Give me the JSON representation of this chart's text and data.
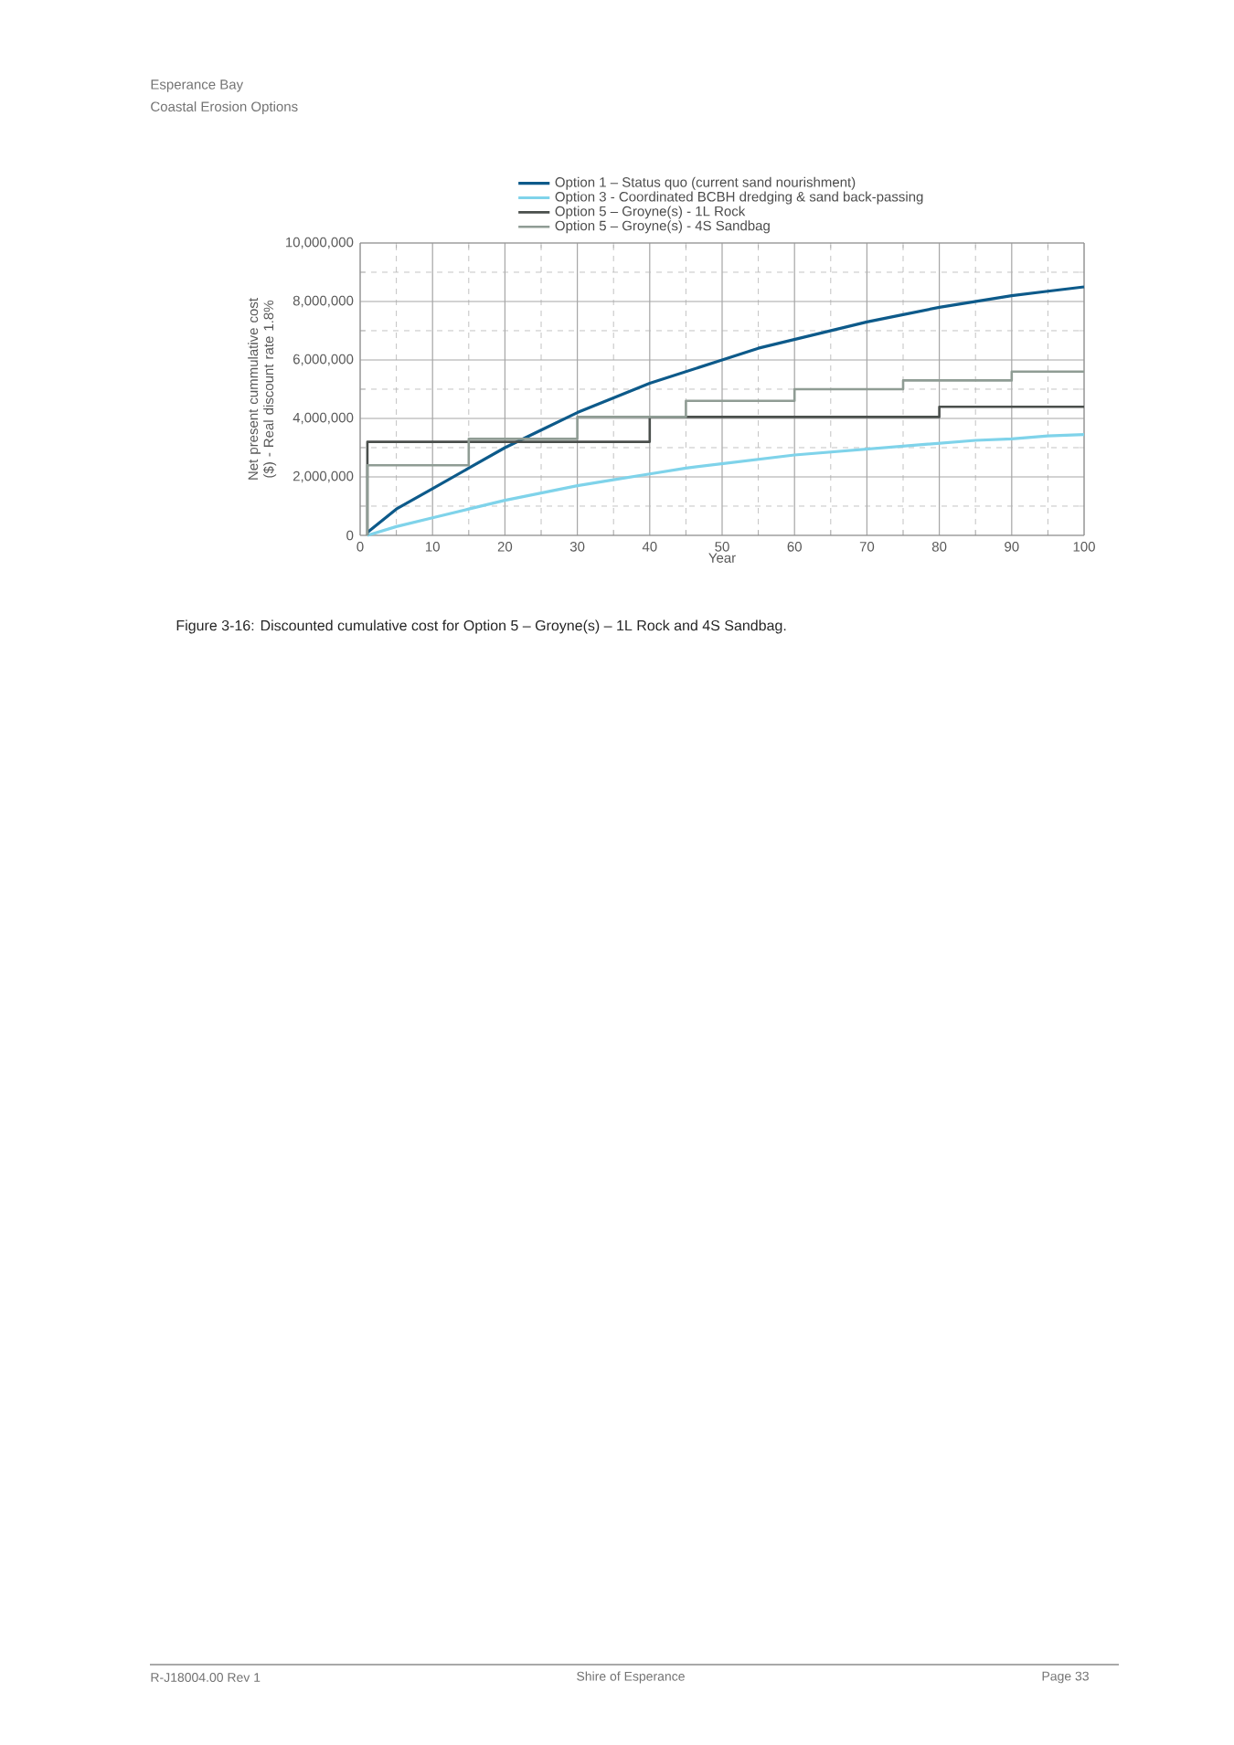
{
  "chart_data": {
    "type": "line",
    "xlabel": "Year",
    "ylabel": "Net present cummulative cost ($) - Real discount rate 1.8%",
    "xlim": [
      0,
      100
    ],
    "xticks": [
      0,
      10,
      20,
      30,
      40,
      50,
      60,
      70,
      80,
      90,
      100
    ],
    "ylim": [
      0,
      10000000
    ],
    "yticks": [
      {
        "value": 0,
        "label": "0"
      },
      {
        "value": 2000000,
        "label": "2,000,000"
      },
      {
        "value": 4000000,
        "label": "4,000,000"
      },
      {
        "value": 6000000,
        "label": "6,000,000"
      },
      {
        "value": 8000000,
        "label": "8,000,000"
      },
      {
        "value": 10000000,
        "label": "10,000,000"
      }
    ],
    "grid": true,
    "legend": "top",
    "marker": "none",
    "line_style": "solid",
    "series": [
      {
        "name": "Option 1 – Status quo (current sand nourishment)",
        "color": "#0d5a8a",
        "x": [
          1,
          5,
          10,
          15,
          20,
          25,
          30,
          35,
          40,
          45,
          50,
          55,
          60,
          65,
          70,
          75,
          80,
          85,
          90,
          95,
          100
        ],
        "values": [
          100000,
          900000,
          1600000,
          2300000,
          3000000,
          3600000,
          4200000,
          4700000,
          5200000,
          5600000,
          6000000,
          6400000,
          6700000,
          7000000,
          7300000,
          7550000,
          7800000,
          8000000,
          8200000,
          8350000,
          8500000
        ]
      },
      {
        "name": "Option 3 - Coordinated BCBH dredging & sand back-passing",
        "color": "#7fd3ea",
        "x": [
          1,
          5,
          10,
          15,
          20,
          25,
          30,
          35,
          40,
          45,
          50,
          55,
          60,
          65,
          70,
          75,
          80,
          85,
          90,
          95,
          100
        ],
        "values": [
          0,
          300000,
          600000,
          900000,
          1200000,
          1450000,
          1700000,
          1900000,
          2100000,
          2300000,
          2450000,
          2600000,
          2750000,
          2850000,
          2950000,
          3050000,
          3150000,
          3250000,
          3300000,
          3400000,
          3450000
        ]
      },
      {
        "name": "Option 5 – Groyne(s) - 1L Rock",
        "type": "step",
        "color": "#4a4f4c",
        "x": [
          1,
          1,
          40,
          80,
          100
        ],
        "values": [
          0,
          3200000,
          4050000,
          4400000,
          4400000
        ]
      },
      {
        "name": "Option 5 – Groyne(s) - 4S Sandbag",
        "type": "step",
        "color": "#8f9c94",
        "x": [
          1,
          1,
          15,
          30,
          45,
          60,
          75,
          90,
          100
        ],
        "values": [
          0,
          2400000,
          3300000,
          4050000,
          4600000,
          5000000,
          5300000,
          5600000,
          5600000
        ]
      }
    ],
    "annotations": [
      "Esperance Bay",
      "Coastal Erosion Options",
      "Figure 3-16: Discounted cumulative cost for Option 5 – Groyne(s) – 1L Rock and 4S Sandbag.",
      "R-J18004.00 Rev 1",
      "Shire of Esperance",
      "Page 33"
    ]
  }
}
